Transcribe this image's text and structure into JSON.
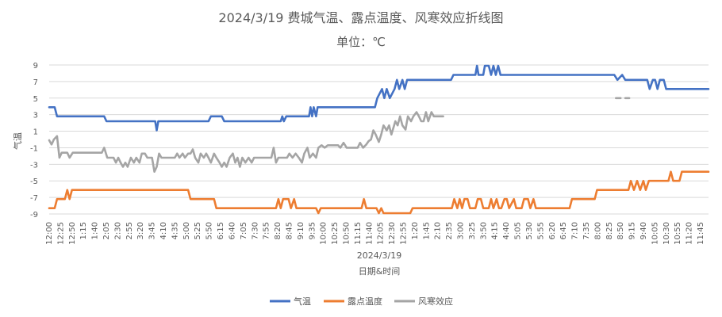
{
  "chart_data": {
    "type": "line",
    "title": "2024/3/19 费城气温、露点温度、风寒效应折线图",
    "subtitle": "单位：℃",
    "xlabel": "日期&时间",
    "ylabel": "气温",
    "date_label": "2024/3/19",
    "ylim": [
      -9,
      9
    ],
    "yticks": [
      9,
      7,
      5,
      3,
      1,
      -1,
      -3,
      -5,
      -7,
      -9
    ],
    "grid": true,
    "legend_position": "bottom",
    "x_ticks": [
      "12:00",
      "12:25",
      "12:50",
      "1:15",
      "1:40",
      "2:05",
      "2:30",
      "2:55",
      "3:20",
      "3:45",
      "4:10",
      "4:35",
      "5:00",
      "5:25",
      "5:50",
      "6:15",
      "6:40",
      "7:05",
      "7:30",
      "7:55",
      "8:20",
      "8:45",
      "9:10",
      "9:35",
      "10:00",
      "10:25",
      "10:50",
      "11:15",
      "11:40",
      "12:05",
      "12:30",
      "12:55",
      "1:20",
      "1:45",
      "2:10",
      "2:35",
      "3:00",
      "3:25",
      "3:50",
      "4:15",
      "4:40",
      "5:05",
      "5:30",
      "5:55",
      "6:20",
      "6:45",
      "7:10",
      "7:35",
      "8:00",
      "8:25",
      "8:50",
      "9:15",
      "9:40",
      "10:05",
      "10:30",
      "10:55",
      "11:20",
      "11:45"
    ],
    "x_tick_display": [
      "12:00",
      "12:25",
      "12:50",
      "1:15",
      "1:40",
      "2:05",
      "2:30",
      "2:55",
      "3:20",
      "3:45",
      "4:10",
      "4:35",
      "5:00",
      "5:25",
      "5:50",
      "6:15",
      "6:40",
      "7:05",
      "7:30",
      "7:55",
      "8:20",
      "8:45",
      "9:10",
      "9:35",
      "10:00",
      "10:25",
      "10:50",
      "11:15",
      "11:40",
      "12:05",
      "12:30",
      "12:55",
      "1:20",
      "1:45",
      "2:10",
      "2:35",
      "3:00",
      "3:25",
      "3:50",
      "4:15",
      "4:40",
      "5:05",
      "5:30",
      "5:55",
      "6:20",
      "6:45",
      "7:10",
      "7:35",
      "8:00",
      "8:25",
      "8:50",
      "9:15",
      "9:40",
      "10:05",
      "10:30",
      "10:55",
      "11:20",
      "11:45"
    ],
    "series": [
      {
        "name": "气温",
        "color": "#4472C4",
        "points": [
          [
            0,
            3.9
          ],
          [
            0.7,
            3.9
          ],
          [
            1,
            2.8
          ],
          [
            3,
            2.8
          ],
          [
            7,
            2.8
          ],
          [
            7.3,
            2.2
          ],
          [
            13.5,
            2.2
          ],
          [
            13.7,
            1.1
          ],
          [
            13.9,
            2.2
          ],
          [
            20.3,
            2.2
          ],
          [
            20.6,
            2.8
          ],
          [
            22,
            2.8
          ],
          [
            22.3,
            2.2
          ],
          [
            29.5,
            2.2
          ],
          [
            29.7,
            2.8
          ],
          [
            29.9,
            2.2
          ],
          [
            30.2,
            2.8
          ],
          [
            33.1,
            2.8
          ],
          [
            33.3,
            3.9
          ],
          [
            33.5,
            2.8
          ],
          [
            33.7,
            3.9
          ],
          [
            34,
            2.8
          ],
          [
            34.2,
            3.9
          ],
          [
            41.5,
            3.9
          ],
          [
            41.8,
            5
          ],
          [
            42.4,
            6.1
          ],
          [
            42.7,
            5
          ],
          [
            43,
            6.1
          ],
          [
            43.4,
            5
          ],
          [
            44,
            6.1
          ],
          [
            44.3,
            7.2
          ],
          [
            44.6,
            6.1
          ],
          [
            45,
            7.2
          ],
          [
            45.3,
            6.1
          ],
          [
            45.6,
            7.2
          ],
          [
            51.2,
            7.2
          ],
          [
            51.5,
            7.8
          ],
          [
            54.3,
            7.8
          ],
          [
            54.5,
            8.9
          ],
          [
            54.7,
            7.8
          ],
          [
            55.3,
            7.8
          ],
          [
            55.5,
            8.9
          ],
          [
            56,
            8.9
          ],
          [
            56.3,
            7.8
          ],
          [
            56.6,
            8.9
          ],
          [
            56.9,
            7.8
          ],
          [
            57.2,
            8.9
          ],
          [
            57.5,
            7.8
          ],
          [
            72,
            7.8
          ],
          [
            72.4,
            7.2
          ],
          [
            73,
            7.8
          ],
          [
            73.4,
            7.2
          ],
          [
            76.2,
            7.2
          ],
          [
            76.5,
            6.1
          ],
          [
            76.9,
            7.2
          ],
          [
            77.2,
            7.2
          ],
          [
            77.5,
            6.1
          ],
          [
            77.8,
            7.2
          ],
          [
            78.3,
            7.2
          ],
          [
            78.6,
            6.1
          ],
          [
            84,
            6.1
          ]
        ]
      },
      {
        "name": "露点温度",
        "color": "#ED7D31",
        "points": [
          [
            0,
            -8.3
          ],
          [
            0.7,
            -8.3
          ],
          [
            1,
            -7.2
          ],
          [
            2,
            -7.2
          ],
          [
            2.3,
            -6.1
          ],
          [
            2.6,
            -7.2
          ],
          [
            2.9,
            -6.1
          ],
          [
            17.7,
            -6.1
          ],
          [
            18,
            -7.2
          ],
          [
            21,
            -7.2
          ],
          [
            21.3,
            -8.3
          ],
          [
            28.9,
            -8.3
          ],
          [
            29.2,
            -7.2
          ],
          [
            29.5,
            -8.3
          ],
          [
            29.8,
            -7.2
          ],
          [
            30.5,
            -7.2
          ],
          [
            30.8,
            -8.3
          ],
          [
            31.2,
            -7.2
          ],
          [
            31.5,
            -8.3
          ],
          [
            34,
            -8.3
          ],
          [
            34.3,
            -8.9
          ],
          [
            34.6,
            -8.3
          ],
          [
            39.8,
            -8.3
          ],
          [
            40.1,
            -7.2
          ],
          [
            40.4,
            -8.3
          ],
          [
            41.7,
            -8.3
          ],
          [
            42,
            -8.9
          ],
          [
            42.3,
            -8.3
          ],
          [
            42.6,
            -8.9
          ],
          [
            46,
            -8.9
          ],
          [
            46.3,
            -8.3
          ],
          [
            51.3,
            -8.3
          ],
          [
            51.6,
            -7.2
          ],
          [
            52,
            -8.3
          ],
          [
            52.3,
            -7.2
          ],
          [
            52.6,
            -8.3
          ],
          [
            52.9,
            -7.2
          ],
          [
            53.3,
            -7.2
          ],
          [
            53.6,
            -8.3
          ],
          [
            54.3,
            -8.3
          ],
          [
            54.6,
            -7.2
          ],
          [
            55,
            -7.2
          ],
          [
            55.3,
            -8.3
          ],
          [
            56,
            -8.3
          ],
          [
            56.3,
            -7.2
          ],
          [
            56.6,
            -8.3
          ],
          [
            57,
            -7.2
          ],
          [
            57.3,
            -8.3
          ],
          [
            57.6,
            -8.3
          ],
          [
            58,
            -7.2
          ],
          [
            58.3,
            -7.2
          ],
          [
            58.6,
            -8.3
          ],
          [
            59.2,
            -7.2
          ],
          [
            59.5,
            -8.3
          ],
          [
            60.2,
            -8.3
          ],
          [
            60.5,
            -7.2
          ],
          [
            61,
            -7.2
          ],
          [
            61.3,
            -8.3
          ],
          [
            61.7,
            -7.2
          ],
          [
            62,
            -8.3
          ],
          [
            66.3,
            -8.3
          ],
          [
            66.6,
            -7.2
          ],
          [
            69.5,
            -7.2
          ],
          [
            69.8,
            -6.1
          ],
          [
            73.8,
            -6.1
          ],
          [
            74.1,
            -5
          ],
          [
            74.5,
            -6.1
          ],
          [
            74.9,
            -5
          ],
          [
            75.3,
            -6.1
          ],
          [
            75.7,
            -5
          ],
          [
            76,
            -6.1
          ],
          [
            76.4,
            -5
          ],
          [
            78.9,
            -5
          ],
          [
            79.2,
            -3.9
          ],
          [
            79.5,
            -5
          ],
          [
            80.3,
            -5
          ],
          [
            80.6,
            -3.9
          ],
          [
            84,
            -3.9
          ]
        ]
      },
      {
        "name": "风寒效应",
        "color": "#A5A5A5",
        "segments": [
          [
            [
              0,
              -0.1
            ],
            [
              0.3,
              -0.6
            ],
            [
              0.6,
              0
            ],
            [
              1,
              0.4
            ],
            [
              1.3,
              -2.2
            ],
            [
              1.6,
              -1.6
            ],
            [
              2.3,
              -1.6
            ],
            [
              2.6,
              -2.2
            ],
            [
              3,
              -1.6
            ],
            [
              6.7,
              -1.6
            ],
            [
              7,
              -1
            ],
            [
              7.4,
              -2.2
            ],
            [
              8.2,
              -2.2
            ],
            [
              8.5,
              -2.8
            ],
            [
              8.8,
              -2.2
            ],
            [
              9.1,
              -2.8
            ],
            [
              9.4,
              -3.3
            ],
            [
              9.7,
              -2.8
            ],
            [
              10,
              -3.3
            ],
            [
              10.4,
              -2.2
            ],
            [
              10.8,
              -2.8
            ],
            [
              11.1,
              -2.2
            ],
            [
              11.5,
              -2.8
            ],
            [
              11.8,
              -1.7
            ],
            [
              12.2,
              -1.7
            ],
            [
              12.5,
              -2.2
            ],
            [
              13.1,
              -2.2
            ],
            [
              13.4,
              -3.9
            ],
            [
              13.7,
              -3.3
            ],
            [
              14,
              -1.7
            ],
            [
              14.3,
              -2.2
            ],
            [
              15,
              -2.2
            ],
            [
              16,
              -2.2
            ],
            [
              16.3,
              -1.7
            ],
            [
              16.6,
              -2.2
            ],
            [
              17,
              -1.7
            ],
            [
              17.3,
              -2.2
            ],
            [
              17.7,
              -1.7
            ],
            [
              18,
              -1.7
            ],
            [
              18.3,
              -1.2
            ],
            [
              18.6,
              -2.2
            ],
            [
              19,
              -2.8
            ],
            [
              19.3,
              -1.7
            ],
            [
              19.7,
              -2.2
            ],
            [
              20,
              -1.7
            ],
            [
              20.3,
              -2.2
            ],
            [
              20.6,
              -2.8
            ],
            [
              21,
              -1.7
            ],
            [
              21.3,
              -2.2
            ],
            [
              21.7,
              -2.8
            ],
            [
              22,
              -3.3
            ],
            [
              22.3,
              -2.8
            ],
            [
              22.6,
              -3.3
            ],
            [
              23,
              -2.2
            ],
            [
              23.4,
              -1.7
            ],
            [
              23.7,
              -2.8
            ],
            [
              24,
              -2.2
            ],
            [
              24.3,
              -3.3
            ],
            [
              24.6,
              -2.2
            ],
            [
              25,
              -2.8
            ],
            [
              25.4,
              -2.2
            ],
            [
              25.8,
              -2.8
            ],
            [
              26.1,
              -2.2
            ],
            [
              28.3,
              -2.2
            ],
            [
              28.6,
              -1
            ],
            [
              28.9,
              -2.8
            ],
            [
              29.2,
              -2.2
            ],
            [
              30.3,
              -2.2
            ],
            [
              30.6,
              -1.7
            ],
            [
              31,
              -2.2
            ],
            [
              31.4,
              -1.7
            ],
            [
              31.8,
              -2.2
            ],
            [
              32.2,
              -2.8
            ],
            [
              32.5,
              -1.7
            ],
            [
              32.9,
              -1
            ],
            [
              33.2,
              -2.2
            ],
            [
              33.6,
              -1.7
            ],
            [
              34,
              -2.2
            ],
            [
              34.3,
              -1
            ],
            [
              34.7,
              -0.7
            ],
            [
              35.1,
              -1
            ],
            [
              35.5,
              -0.7
            ],
            [
              36.8,
              -0.7
            ],
            [
              37.1,
              -1
            ],
            [
              37.5,
              -0.4
            ],
            [
              37.9,
              -1
            ],
            [
              39.3,
              -1
            ],
            [
              39.6,
              -0.4
            ],
            [
              40,
              -1
            ],
            [
              40.4,
              -0.6
            ],
            [
              40.7,
              -0.2
            ],
            [
              41,
              0
            ],
            [
              41.3,
              1.1
            ],
            [
              41.6,
              0.6
            ],
            [
              42,
              -0.3
            ],
            [
              42.3,
              0.6
            ],
            [
              42.6,
              1.7
            ],
            [
              43,
              1.1
            ],
            [
              43.3,
              1.7
            ],
            [
              43.6,
              0.6
            ],
            [
              44.1,
              2.2
            ],
            [
              44.4,
              1.7
            ],
            [
              44.7,
              2.8
            ],
            [
              45,
              1.7
            ],
            [
              45.4,
              1.2
            ],
            [
              45.7,
              2.8
            ],
            [
              46.1,
              2.2
            ],
            [
              46.4,
              2.8
            ],
            [
              46.8,
              3.3
            ],
            [
              47.1,
              2.8
            ],
            [
              47.4,
              2.2
            ],
            [
              47.7,
              2.2
            ],
            [
              48,
              3.3
            ],
            [
              48.3,
              2.2
            ],
            [
              48.7,
              3.3
            ],
            [
              49,
              2.8
            ],
            [
              50.2,
              2.8
            ]
          ],
          [
            [
              72.2,
              5
            ],
            [
              72.8,
              5
            ]
          ],
          [
            [
              73.4,
              5
            ],
            [
              73.9,
              5
            ]
          ]
        ]
      }
    ],
    "x_max": 84
  }
}
